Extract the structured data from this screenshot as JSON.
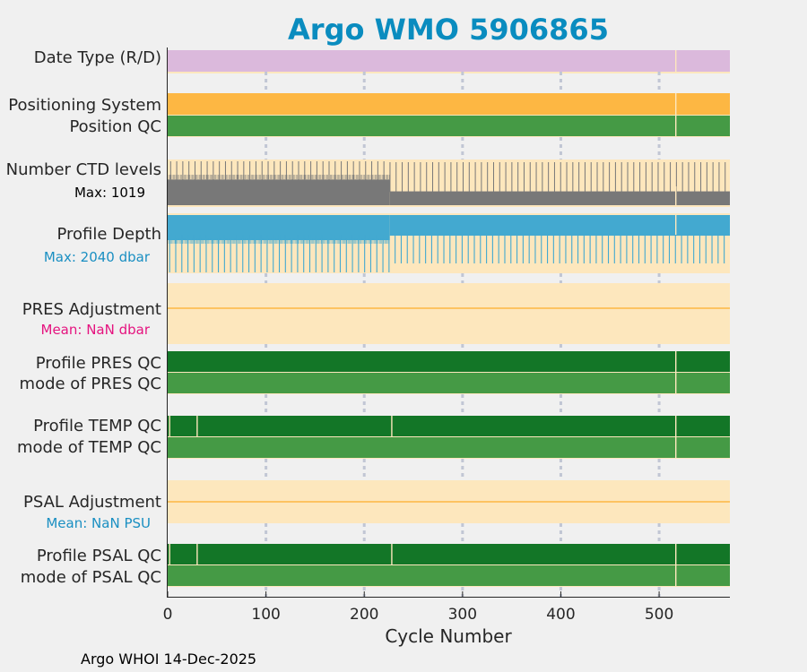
{
  "chart_data": {
    "type": "table",
    "title": "Argo WMO 5906865",
    "xlabel": "Cycle Number",
    "xlim": [
      0,
      572
    ],
    "xticks": [
      0,
      100,
      200,
      300,
      400,
      500
    ],
    "grid_x": [
      100,
      200,
      300,
      400,
      500
    ],
    "footer": "Argo WHOI 14-Dec-2025",
    "rows": [
      {
        "key": "datetype",
        "label": "Date Type (R/D)"
      },
      {
        "key": "possys",
        "label": "Positioning System"
      },
      {
        "key": "posqc",
        "label": "Position QC"
      },
      {
        "key": "ctd",
        "label": "Number CTD levels",
        "sublabel": "Max: 1019"
      },
      {
        "key": "depth",
        "label": "Profile Depth",
        "sublabel": "Max: 2040 dbar"
      },
      {
        "key": "presadj",
        "label": "PRES Adjustment",
        "sublabel": "Mean:  NaN dbar"
      },
      {
        "key": "presqc",
        "label": "Profile PRES QC"
      },
      {
        "key": "presmode",
        "label": "mode of PRES QC"
      },
      {
        "key": "tempqc",
        "label": "Profile TEMP QC"
      },
      {
        "key": "tempmode",
        "label": "mode of TEMP QC"
      },
      {
        "key": "psaladj",
        "label": "PSAL Adjustment",
        "sublabel": "Mean:  NaN PSU"
      },
      {
        "key": "psalqc",
        "label": "Profile PSAL QC"
      },
      {
        "key": "psalmode",
        "label": "mode of PSAL QC"
      }
    ],
    "gap_cycles": {
      "all_rows": [
        517
      ],
      "temp_psal_qc": [
        2,
        30,
        228,
        517
      ]
    },
    "ctd_levels": {
      "max": 1019,
      "step_cycle": 226,
      "level_before": 0.93,
      "level_after": 0.5,
      "spike_level": 1.0
    },
    "profile_depth_dbar": {
      "max": 2040,
      "step_cycle": 226
    }
  },
  "colors": {
    "title": "#0a8cbf",
    "panel_bg": "#fde7bd",
    "date_type": "#dbb9dc",
    "positioning": "#fdb743",
    "qc_good": "#459a45",
    "qc_dark": "#137627",
    "ctd": "#787878",
    "depth": "#43a9d0",
    "adjustment": "#fdb743",
    "mean_pres": "#e5137f",
    "mean_psal": "#1a8fc2",
    "grid": "#c1c6d4"
  }
}
